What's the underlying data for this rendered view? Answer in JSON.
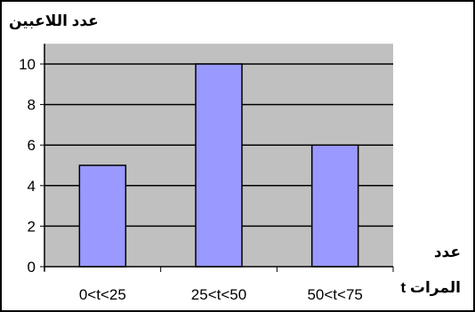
{
  "chart_data": {
    "type": "bar",
    "title": "",
    "ylabel": "عدد اللاعبين",
    "xlabel_line1": "عدد",
    "xlabel_line2": "المرات t",
    "categories": [
      "0<t<25",
      "25<t<50",
      "50<t<75"
    ],
    "values": [
      5,
      10,
      6
    ],
    "ylim": [
      0,
      11
    ],
    "yticks": [
      0,
      2,
      4,
      6,
      8,
      10
    ],
    "grid": true,
    "legend": "none",
    "bar_color": "#9999ff",
    "plot_bg_color": "#c0c0c0"
  }
}
